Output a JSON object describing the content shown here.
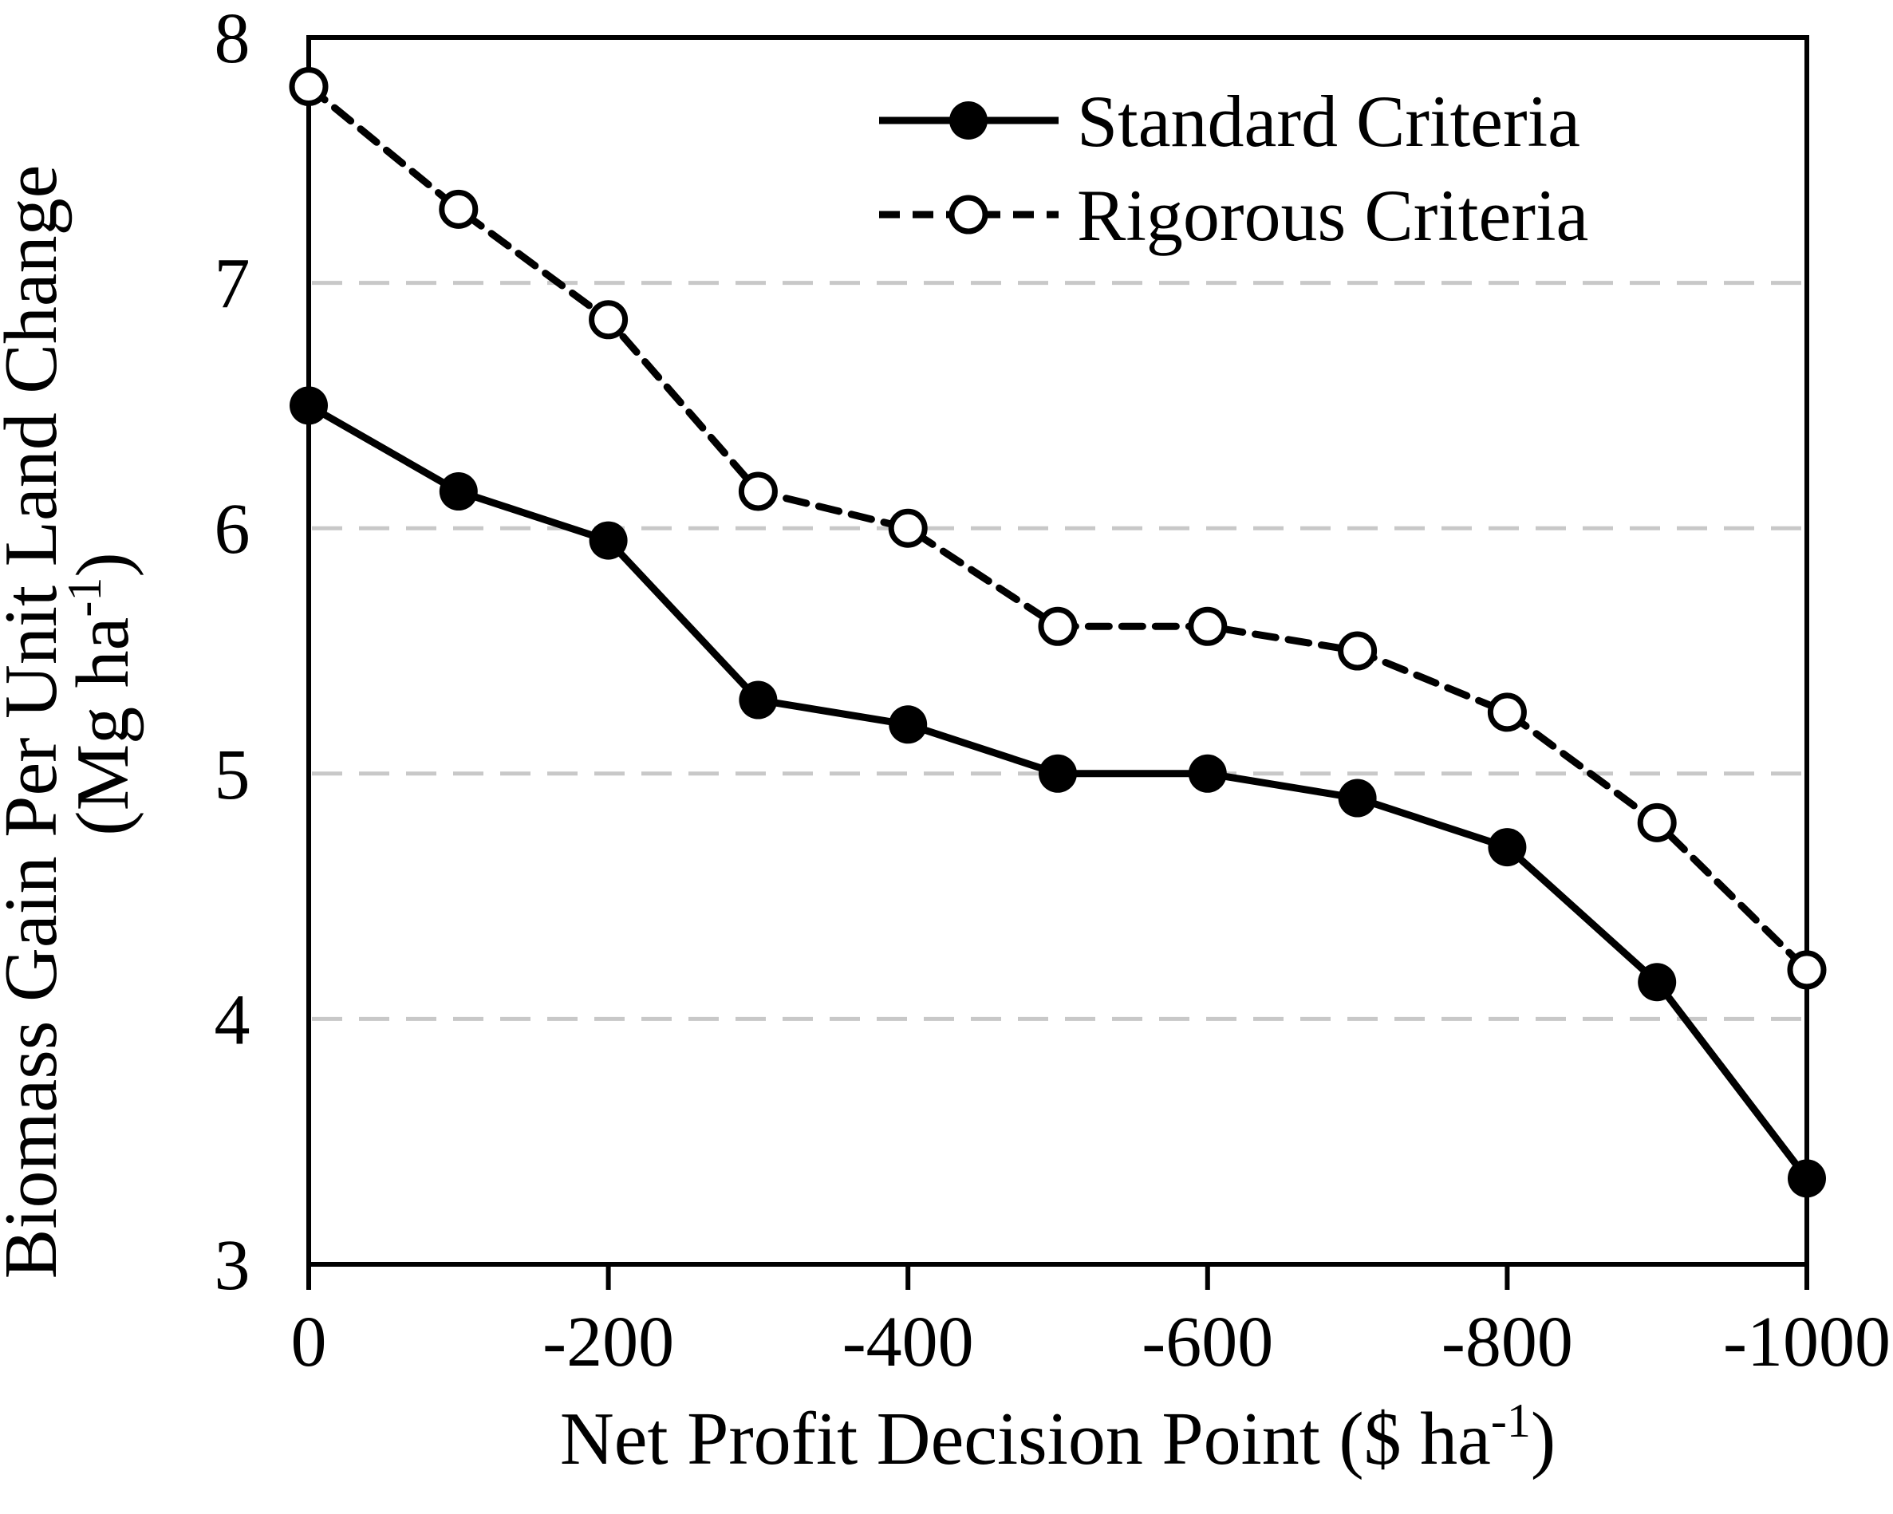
{
  "chart_data": {
    "type": "line",
    "x": [
      0,
      -100,
      -200,
      -300,
      -400,
      -500,
      -600,
      -700,
      -800,
      -900,
      -1000
    ],
    "series": [
      {
        "name": "Standard Criteria",
        "line": "solid",
        "marker": "filled-circle",
        "color": "#000000",
        "values": [
          6.5,
          6.15,
          5.95,
          5.3,
          5.2,
          5.0,
          5.0,
          4.9,
          4.7,
          4.15,
          3.35
        ]
      },
      {
        "name": "Rigorous Criteria",
        "line": "dashed",
        "marker": "open-circle",
        "color": "#000000",
        "values": [
          7.8,
          7.3,
          6.85,
          6.15,
          6.0,
          5.6,
          5.6,
          5.5,
          5.25,
          4.8,
          4.2
        ]
      }
    ],
    "title": "",
    "xlabel_parts": {
      "main": "Net Profit Decision Point ($ ha",
      "sup": "-1",
      "suffix": ")"
    },
    "ylabel_line1": "Biomass Gain Per Unit Land Change",
    "ylabel_line2_parts": {
      "main": "(Mg ha",
      "sup": "-1",
      "suffix": ")"
    },
    "xlim": [
      0,
      -1000
    ],
    "ylim": [
      3,
      8
    ],
    "xticks": [
      0,
      -200,
      -400,
      -600,
      -800,
      -1000
    ],
    "xtick_labels": [
      "0",
      "-200",
      "-400",
      "-600",
      "-800",
      "-1000"
    ],
    "yticks": [
      3,
      4,
      5,
      6,
      7,
      8
    ],
    "ytick_labels": [
      "3",
      "4",
      "5",
      "6",
      "7",
      "8"
    ],
    "grid_yticks": [
      4,
      5,
      6,
      7
    ],
    "grid": "horizontal dashed gridlines at integer y values",
    "legend_position": "top-right inside plot, no frame",
    "axis_color": "#000000",
    "gridline_color": "#c8c8c8",
    "background_color": "#ffffff"
  },
  "legend": {
    "items": [
      {
        "label": "Standard Criteria",
        "line": "solid",
        "marker": "filled-circle"
      },
      {
        "label": "Rigorous Criteria",
        "line": "dashed",
        "marker": "open-circle"
      }
    ]
  }
}
